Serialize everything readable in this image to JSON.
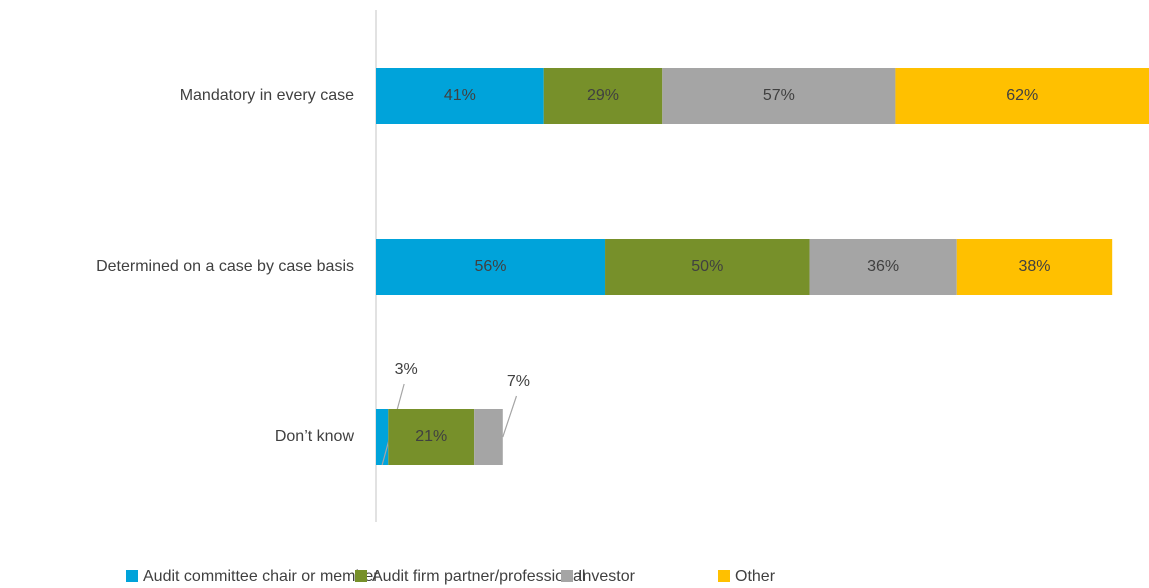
{
  "chart_data": {
    "type": "stacked-bar-horizontal",
    "categories": [
      "Mandatory in every case",
      "Determined on a case by case basis",
      "Don’t know"
    ],
    "series": [
      {
        "name": "Audit committee chair or member",
        "color": "#00a3da",
        "values": [
          41,
          56,
          3
        ],
        "value_labels": [
          "41%",
          "56%",
          "3%"
        ]
      },
      {
        "name": "Audit firm partner/professional",
        "color": "#77902a",
        "values": [
          29,
          50,
          21
        ],
        "value_labels": [
          "29%",
          "50%",
          "21%"
        ]
      },
      {
        "name": "Investor",
        "color": "#a5a5a5",
        "values": [
          57,
          36,
          7
        ],
        "value_labels": [
          "57%",
          "36%",
          "7%"
        ]
      },
      {
        "name": "Other",
        "color": "#ffc000",
        "values": [
          62,
          38,
          null
        ],
        "value_labels": [
          "62%",
          "38%",
          null
        ]
      }
    ],
    "legend": "bottom"
  }
}
